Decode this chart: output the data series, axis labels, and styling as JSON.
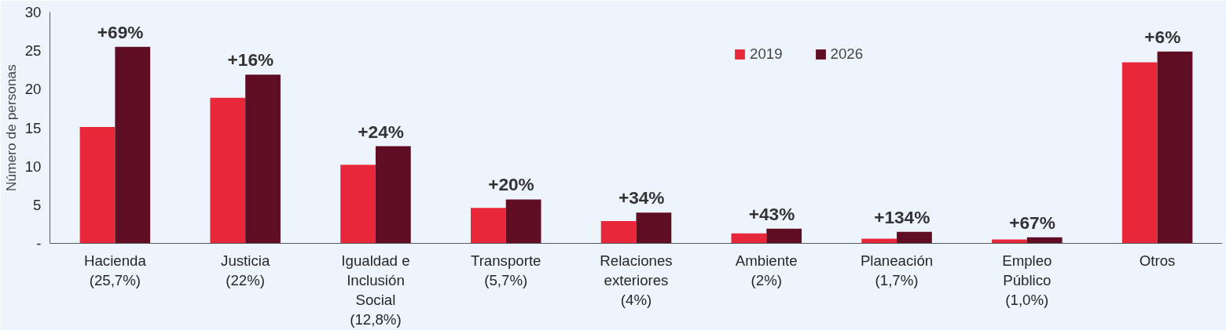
{
  "chart_data": {
    "type": "bar",
    "ylabel": "Número de personas",
    "categories": [
      "Hacienda\n(25,7%)",
      "Justicia\n(22%)",
      "Igualdad e\nInclusión\nSocial\n(12,8%)",
      "Transporte\n(5,7%)",
      "Relaciones\nexteriores\n(4%)",
      "Ambiente\n(2%)",
      "Planeación\n(1,7%)",
      "Empleo\nPúblico\n(1,0%)",
      "Otros"
    ],
    "series": [
      {
        "name": "2019",
        "color": "#e8283a",
        "values": [
          15.1,
          18.9,
          10.2,
          4.6,
          2.9,
          1.3,
          0.6,
          0.5,
          23.5
        ]
      },
      {
        "name": "2026",
        "color": "#5e0d22",
        "values": [
          25.5,
          21.9,
          12.6,
          5.7,
          4.0,
          1.9,
          1.5,
          0.8,
          24.9
        ]
      }
    ],
    "ylim": [
      0,
      30
    ],
    "yticks": [
      {
        "value": 0,
        "label": "-"
      },
      5,
      10,
      15,
      20,
      25,
      30
    ],
    "annotations": [
      {
        "text": "+69%",
        "x": "Hacienda\n(25,7%)",
        "y": 25.5
      },
      {
        "text": "+16%",
        "x": "Justicia\n(22%)",
        "y": 21.9
      },
      {
        "text": "+24%",
        "x": "Igualdad e\nInclusión\nSocial\n(12,8%)",
        "y": 12.6
      },
      {
        "text": "+20%",
        "x": "Transporte\n(5,7%)",
        "y": 5.7
      },
      {
        "text": "+34%",
        "x": "Relaciones\nexteriores\n(4%)",
        "y": 4.0
      },
      {
        "text": "+43%",
        "x": "Ambiente\n(2%)",
        "y": 1.9
      },
      {
        "text": "+134%",
        "x": "Planeación\n(1,7%)",
        "y": 1.5
      },
      {
        "text": "+67%",
        "x": "Empleo\nPúblico\n(1,0%)",
        "y": 0.8
      },
      {
        "text": "+6%",
        "x": "Otros",
        "y": 24.9
      }
    ],
    "legend": "top",
    "grid": false
  }
}
